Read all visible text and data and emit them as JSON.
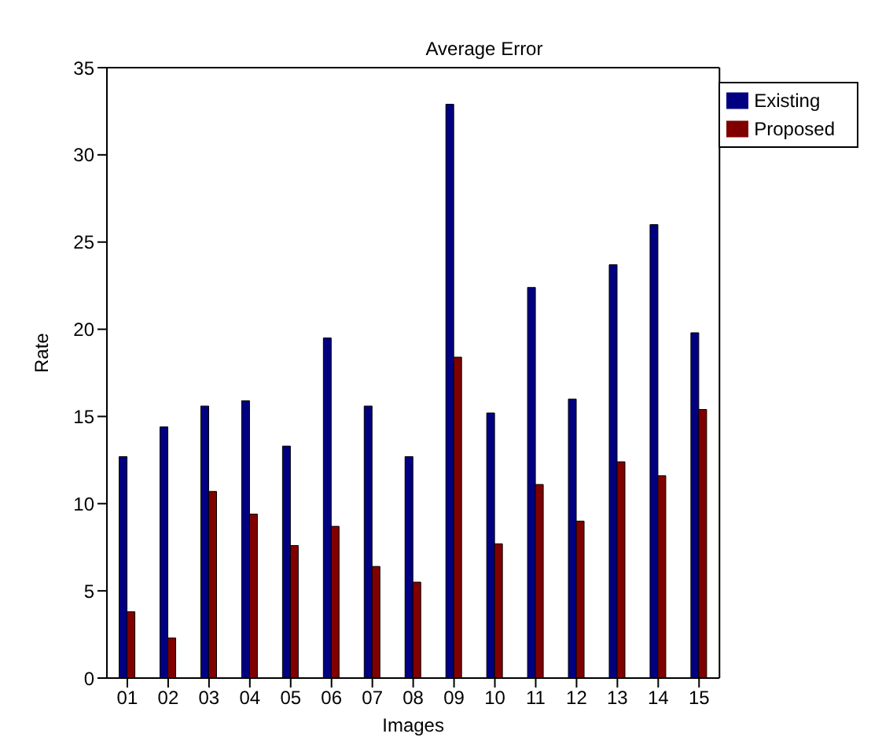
{
  "chart_data": {
    "type": "bar",
    "title": "Average Error",
    "xlabel": "Images",
    "ylabel": "Rate",
    "categories": [
      "01",
      "02",
      "03",
      "04",
      "05",
      "06",
      "07",
      "08",
      "09",
      "10",
      "11",
      "12",
      "13",
      "14",
      "15"
    ],
    "series": [
      {
        "name": "Existing",
        "color": "#000080",
        "values": [
          12.7,
          14.4,
          15.6,
          15.9,
          13.3,
          19.5,
          15.6,
          12.7,
          32.9,
          15.2,
          22.4,
          16.0,
          23.7,
          26.0,
          19.8
        ]
      },
      {
        "name": "Proposed",
        "color": "#800000",
        "values": [
          3.8,
          2.3,
          10.7,
          9.4,
          7.6,
          8.7,
          6.4,
          5.5,
          18.4,
          7.7,
          11.1,
          9.0,
          12.4,
          11.6,
          15.4
        ]
      }
    ],
    "ylim": [
      0,
      35
    ],
    "yticks": [
      0,
      5,
      10,
      15,
      20,
      25,
      30,
      35
    ],
    "grid": false,
    "legend": "top right"
  }
}
